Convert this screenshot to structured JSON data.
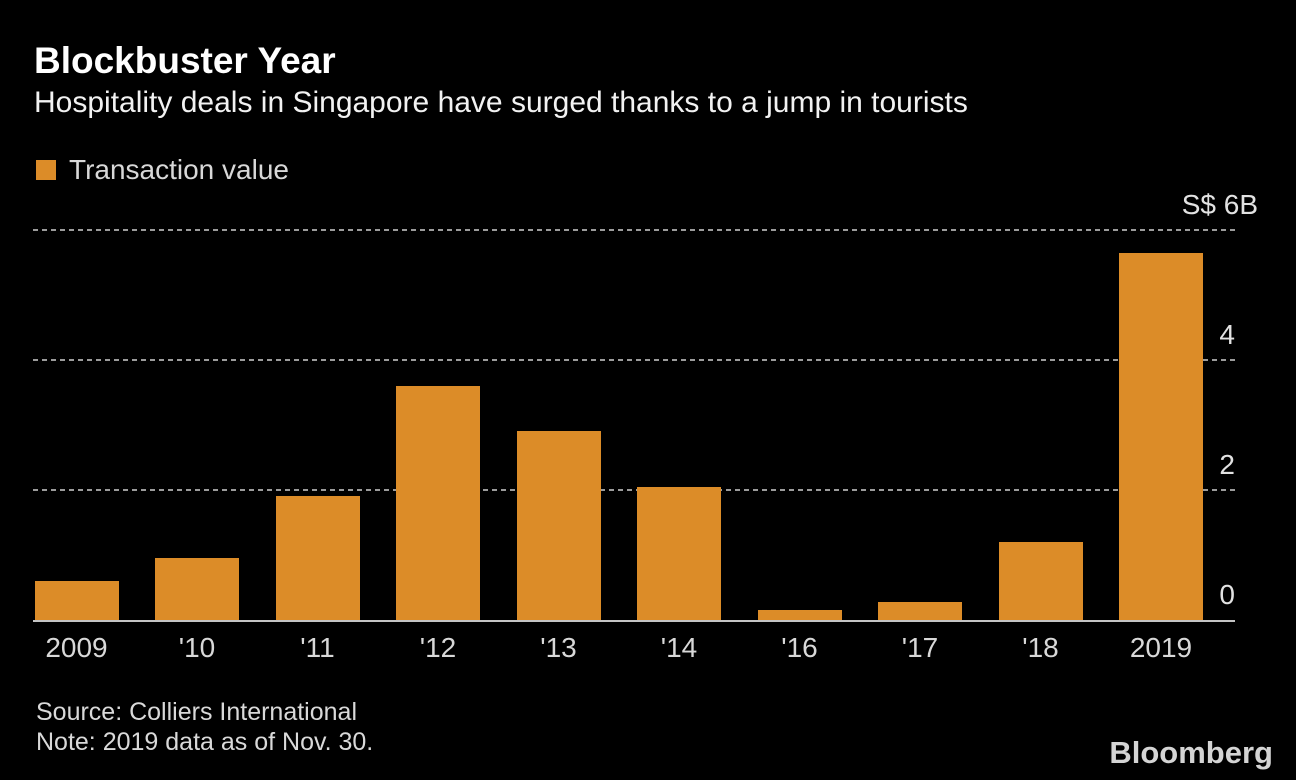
{
  "chart": {
    "title": "Blockbuster Year",
    "subtitle": "Hospitality deals in Singapore have surged thanks to a jump in tourists",
    "legend_label": "Transaction value",
    "source": "Source: Colliers International",
    "note": "Note: 2019 data as of Nov. 30.",
    "brand": "Bloomberg"
  },
  "colors": {
    "background": "#000000",
    "bar": "#DC8C28",
    "grid": "#9C9C9C",
    "axis_line": "#C4C4C4",
    "title_text": "#FFFFFF",
    "muted_text": "#D9D9D9"
  },
  "chart_data": {
    "type": "bar",
    "title": "Blockbuster Year",
    "subtitle": "Hospitality deals in Singapore have surged thanks to a jump in tourists",
    "categories": [
      "2009",
      "'10",
      "'11",
      "'12",
      "'13",
      "'14",
      "'16",
      "'17",
      "'18",
      "2019"
    ],
    "series": [
      {
        "name": "Transaction value",
        "color": "#DC8C28",
        "values": [
          0.6,
          0.95,
          1.9,
          3.6,
          2.9,
          2.05,
          0.15,
          0.27,
          1.2,
          5.65
        ]
      }
    ],
    "xlabel": "",
    "ylabel": "S$ (billions)",
    "ylim": [
      0,
      6
    ],
    "yticks": [
      {
        "value": 6,
        "label": "S$ 6B",
        "is_unit_tick": true
      },
      {
        "value": 4,
        "label": "4"
      },
      {
        "value": 2,
        "label": "2"
      },
      {
        "value": 0,
        "label": "0"
      }
    ],
    "grid": "horizontal dashed gridlines at 2, 4, 6; solid baseline at 0",
    "legend_position": "top-left"
  }
}
